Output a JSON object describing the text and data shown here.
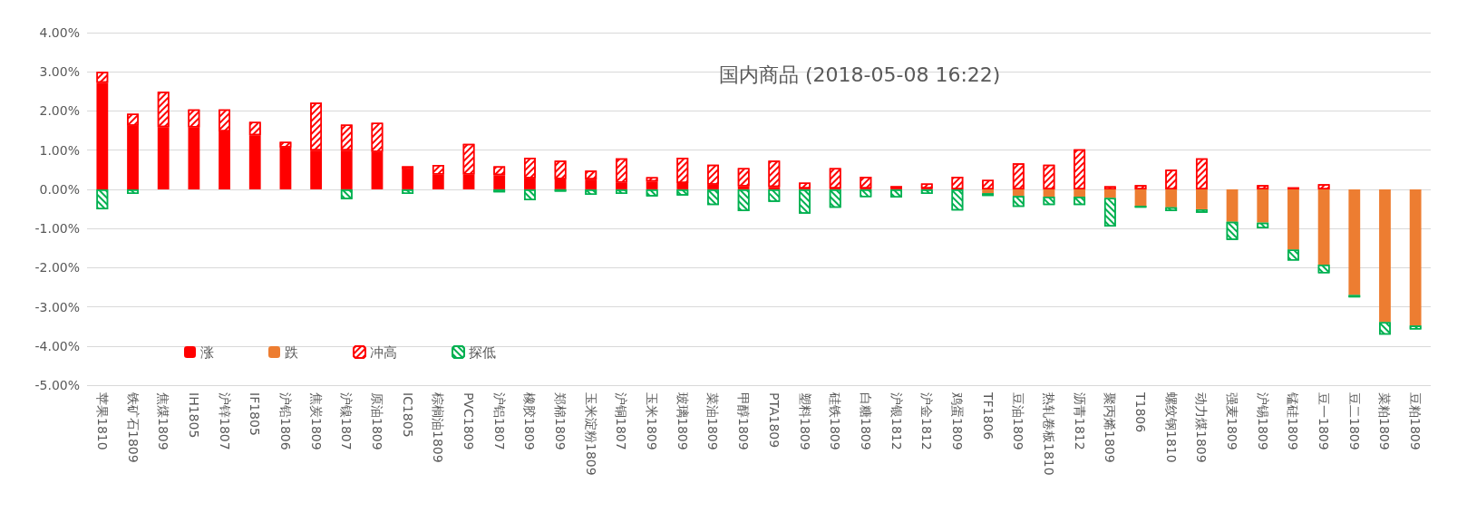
{
  "chart_data": {
    "type": "bar",
    "title": "国内商品 (2018-05-08 16:22)",
    "categories": [
      "苹果1810",
      "铁矿石1809",
      "焦煤1809",
      "IH1805",
      "沪锌1807",
      "IF1805",
      "沪铅1806",
      "焦炭1809",
      "沪镍1807",
      "原油1809",
      "IC1805",
      "棕榈油1809",
      "PVC1809",
      "沪铝1807",
      "橡胶1809",
      "郑棉1809",
      "玉米淀粉1809",
      "沪铜1807",
      "玉米1809",
      "玻璃1809",
      "菜油1809",
      "甲醇1809",
      "PTA1809",
      "塑料1809",
      "硅铁1809",
      "白糖1809",
      "沪银1812",
      "沪金1812",
      "鸡蛋1809",
      "TF1806",
      "豆油1809",
      "热轧卷板1810",
      "沥青1812",
      "聚丙烯1809",
      "T1806",
      "螺纹钢1810",
      "动力煤1809",
      "强麦1809",
      "沪锡1809",
      "锰硅1809",
      "豆一1809",
      "豆二1809",
      "菜粕1809",
      "豆粕1809"
    ],
    "series": [
      {
        "name": "涨",
        "color": "#ff0000",
        "values": [
          2.72,
          1.62,
          1.59,
          1.58,
          1.48,
          1.38,
          1.07,
          0.99,
          0.99,
          0.96,
          0.51,
          0.38,
          0.38,
          0.36,
          0.28,
          0.26,
          0.25,
          0.17,
          0.2,
          0.16,
          0.12,
          0.08,
          0.06,
          0.02,
          0.02,
          0.02,
          0.02,
          0.02,
          null,
          null,
          null,
          null,
          null,
          null,
          null,
          null,
          null,
          null,
          null,
          null,
          null,
          null,
          null,
          null
        ]
      },
      {
        "name": "跌",
        "color": "#ed7d31",
        "values": [
          null,
          null,
          null,
          null,
          null,
          null,
          null,
          null,
          null,
          null,
          null,
          null,
          null,
          null,
          null,
          null,
          null,
          null,
          null,
          null,
          null,
          null,
          null,
          null,
          null,
          null,
          null,
          null,
          null,
          -0.1,
          -0.17,
          -0.19,
          -0.19,
          -0.22,
          -0.42,
          -0.46,
          -0.51,
          -0.83,
          -0.85,
          -1.54,
          -1.92,
          -2.7,
          -3.39,
          -3.48
        ]
      },
      {
        "name": "冲高",
        "color": "#ff0000",
        "values": [
          0.28,
          0.31,
          0.9,
          0.46,
          0.56,
          0.34,
          0.14,
          1.22,
          0.66,
          0.74,
          0.08,
          0.24,
          0.78,
          0.23,
          0.53,
          0.47,
          0.23,
          0.62,
          0.11,
          0.65,
          0.51,
          0.46,
          0.67,
          0.15,
          0.52,
          0.3,
          0.06,
          0.13,
          0.32,
          0.24,
          0.66,
          0.63,
          1.02,
          0.08,
          0.11,
          0.5,
          0.79,
          null,
          0.11,
          0.05,
          0.13,
          null,
          null,
          null
        ]
      },
      {
        "name": "探低",
        "color": "#00b050",
        "values": [
          -0.51,
          -0.12,
          null,
          null,
          null,
          null,
          null,
          null,
          -0.25,
          null,
          -0.12,
          null,
          null,
          -0.08,
          -0.28,
          -0.06,
          -0.14,
          -0.12,
          -0.18,
          -0.16,
          -0.4,
          -0.56,
          -0.32,
          -0.62,
          -0.47,
          -0.2,
          -0.21,
          -0.12,
          -0.54,
          -0.07,
          -0.28,
          -0.21,
          -0.21,
          -0.73,
          -0.05,
          -0.1,
          -0.09,
          -0.46,
          -0.15,
          -0.28,
          -0.22,
          -0.06,
          -0.32,
          -0.1
        ]
      }
    ],
    "stacked": true,
    "ylim": [
      -5,
      4
    ],
    "yticks": [
      {
        "value": -5,
        "label": "-5.00%"
      },
      {
        "value": -4,
        "label": "-4.00%"
      },
      {
        "value": -3,
        "label": "-3.00%"
      },
      {
        "value": -2,
        "label": "-2.00%"
      },
      {
        "value": -1,
        "label": "-1.00%"
      },
      {
        "value": 0,
        "label": "0.00%"
      },
      {
        "value": 1,
        "label": "1.00%"
      },
      {
        "value": 2,
        "label": "2.00%"
      },
      {
        "value": 3,
        "label": "3.00%"
      },
      {
        "value": 4,
        "label": "4.00%"
      }
    ],
    "grid": "y",
    "legend": "bottom left"
  }
}
